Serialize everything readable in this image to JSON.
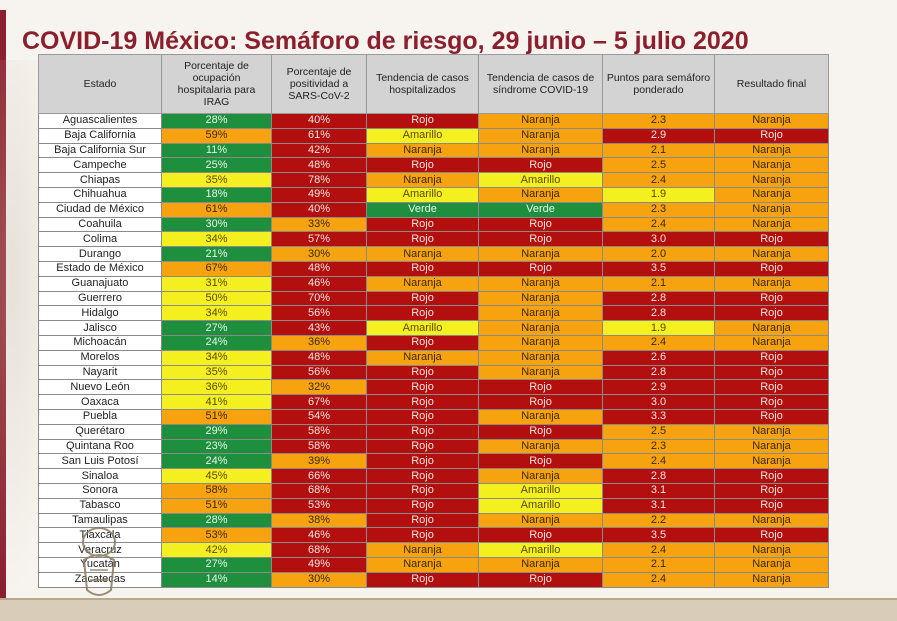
{
  "title": "COVID-19 México: Semáforo de riesgo, 29 junio – 5 julio 2020",
  "colors": {
    "Rojo": "#b30f0f",
    "Naranja": "#f7a20f",
    "Amarillo": "#f4ef1e",
    "Verde": "#1e8f3c",
    "title": "#8c1f2e"
  },
  "table": {
    "headers": [
      "Estado",
      "Porcentaje de ocupación hospitalaria para IRAG",
      "Porcentaje de positividad a SARS-CoV-2",
      "Tendencia de casos hospitalizados",
      "Tendencia de casos de síndrome COVID-19",
      "Puntos para semáforo ponderado",
      "Resultado final"
    ],
    "rows": [
      {
        "estado": "Aguascalientes",
        "ocupacion": "28%",
        "ocupacion_color": "Verde",
        "positividad": "40%",
        "positividad_color": "Rojo",
        "hosp": "Rojo",
        "sindrome": "Naranja",
        "puntos": "2.3",
        "puntos_color": "Naranja",
        "resultado": "Naranja"
      },
      {
        "estado": "Baja California",
        "ocupacion": "59%",
        "ocupacion_color": "Naranja",
        "positividad": "61%",
        "positividad_color": "Rojo",
        "hosp": "Amarillo",
        "sindrome": "Naranja",
        "puntos": "2.9",
        "puntos_color": "Rojo",
        "resultado": "Rojo"
      },
      {
        "estado": "Baja California Sur",
        "ocupacion": "11%",
        "ocupacion_color": "Verde",
        "positividad": "42%",
        "positividad_color": "Rojo",
        "hosp": "Naranja",
        "sindrome": "Naranja",
        "puntos": "2.1",
        "puntos_color": "Naranja",
        "resultado": "Naranja"
      },
      {
        "estado": "Campeche",
        "ocupacion": "25%",
        "ocupacion_color": "Verde",
        "positividad": "48%",
        "positividad_color": "Rojo",
        "hosp": "Rojo",
        "sindrome": "Rojo",
        "puntos": "2.5",
        "puntos_color": "Naranja",
        "resultado": "Naranja"
      },
      {
        "estado": "Chiapas",
        "ocupacion": "35%",
        "ocupacion_color": "Amarillo",
        "positividad": "78%",
        "positividad_color": "Rojo",
        "hosp": "Naranja",
        "sindrome": "Amarillo",
        "puntos": "2.4",
        "puntos_color": "Naranja",
        "resultado": "Naranja"
      },
      {
        "estado": "Chihuahua",
        "ocupacion": "18%",
        "ocupacion_color": "Verde",
        "positividad": "49%",
        "positividad_color": "Rojo",
        "hosp": "Amarillo",
        "sindrome": "Naranja",
        "puntos": "1.9",
        "puntos_color": "Amarillo",
        "resultado": "Naranja"
      },
      {
        "estado": "Ciudad de México",
        "ocupacion": "61%",
        "ocupacion_color": "Naranja",
        "positividad": "40%",
        "positividad_color": "Rojo",
        "hosp": "Verde",
        "sindrome": "Verde",
        "puntos": "2.3",
        "puntos_color": "Naranja",
        "resultado": "Naranja"
      },
      {
        "estado": "Coahuila",
        "ocupacion": "30%",
        "ocupacion_color": "Verde",
        "positividad": "33%",
        "positividad_color": "Naranja",
        "hosp": "Rojo",
        "sindrome": "Rojo",
        "puntos": "2.4",
        "puntos_color": "Naranja",
        "resultado": "Naranja"
      },
      {
        "estado": "Colima",
        "ocupacion": "34%",
        "ocupacion_color": "Amarillo",
        "positividad": "57%",
        "positividad_color": "Rojo",
        "hosp": "Rojo",
        "sindrome": "Rojo",
        "puntos": "3.0",
        "puntos_color": "Rojo",
        "resultado": "Rojo"
      },
      {
        "estado": "Durango",
        "ocupacion": "21%",
        "ocupacion_color": "Verde",
        "positividad": "30%",
        "positividad_color": "Naranja",
        "hosp": "Naranja",
        "sindrome": "Naranja",
        "puntos": "2.0",
        "puntos_color": "Naranja",
        "resultado": "Naranja"
      },
      {
        "estado": "Estado de México",
        "ocupacion": "67%",
        "ocupacion_color": "Naranja",
        "positividad": "48%",
        "positividad_color": "Rojo",
        "hosp": "Rojo",
        "sindrome": "Rojo",
        "puntos": "3.5",
        "puntos_color": "Rojo",
        "resultado": "Rojo"
      },
      {
        "estado": "Guanajuato",
        "ocupacion": "31%",
        "ocupacion_color": "Amarillo",
        "positividad": "46%",
        "positividad_color": "Rojo",
        "hosp": "Naranja",
        "sindrome": "Naranja",
        "puntos": "2.1",
        "puntos_color": "Naranja",
        "resultado": "Naranja"
      },
      {
        "estado": "Guerrero",
        "ocupacion": "50%",
        "ocupacion_color": "Amarillo",
        "positividad": "70%",
        "positividad_color": "Rojo",
        "hosp": "Rojo",
        "sindrome": "Naranja",
        "puntos": "2.8",
        "puntos_color": "Rojo",
        "resultado": "Rojo"
      },
      {
        "estado": "Hidalgo",
        "ocupacion": "34%",
        "ocupacion_color": "Amarillo",
        "positividad": "56%",
        "positividad_color": "Rojo",
        "hosp": "Rojo",
        "sindrome": "Naranja",
        "puntos": "2.8",
        "puntos_color": "Rojo",
        "resultado": "Rojo"
      },
      {
        "estado": "Jalisco",
        "ocupacion": "27%",
        "ocupacion_color": "Verde",
        "positividad": "43%",
        "positividad_color": "Rojo",
        "hosp": "Amarillo",
        "sindrome": "Naranja",
        "puntos": "1.9",
        "puntos_color": "Amarillo",
        "resultado": "Naranja"
      },
      {
        "estado": "Michoacán",
        "ocupacion": "24%",
        "ocupacion_color": "Verde",
        "positividad": "36%",
        "positividad_color": "Naranja",
        "hosp": "Rojo",
        "sindrome": "Naranja",
        "puntos": "2.4",
        "puntos_color": "Naranja",
        "resultado": "Naranja"
      },
      {
        "estado": "Morelos",
        "ocupacion": "34%",
        "ocupacion_color": "Amarillo",
        "positividad": "48%",
        "positividad_color": "Rojo",
        "hosp": "Naranja",
        "sindrome": "Naranja",
        "puntos": "2.6",
        "puntos_color": "Rojo",
        "resultado": "Rojo"
      },
      {
        "estado": "Nayarit",
        "ocupacion": "35%",
        "ocupacion_color": "Amarillo",
        "positividad": "56%",
        "positividad_color": "Rojo",
        "hosp": "Rojo",
        "sindrome": "Naranja",
        "puntos": "2.8",
        "puntos_color": "Rojo",
        "resultado": "Rojo"
      },
      {
        "estado": "Nuevo León",
        "ocupacion": "36%",
        "ocupacion_color": "Amarillo",
        "positividad": "32%",
        "positividad_color": "Naranja",
        "hosp": "Rojo",
        "sindrome": "Rojo",
        "puntos": "2.9",
        "puntos_color": "Rojo",
        "resultado": "Rojo"
      },
      {
        "estado": "Oaxaca",
        "ocupacion": "41%",
        "ocupacion_color": "Amarillo",
        "positividad": "67%",
        "positividad_color": "Rojo",
        "hosp": "Rojo",
        "sindrome": "Rojo",
        "puntos": "3.0",
        "puntos_color": "Rojo",
        "resultado": "Rojo"
      },
      {
        "estado": "Puebla",
        "ocupacion": "51%",
        "ocupacion_color": "Naranja",
        "positividad": "54%",
        "positividad_color": "Rojo",
        "hosp": "Rojo",
        "sindrome": "Naranja",
        "puntos": "3.3",
        "puntos_color": "Rojo",
        "resultado": "Rojo"
      },
      {
        "estado": "Querétaro",
        "ocupacion": "29%",
        "ocupacion_color": "Verde",
        "positividad": "58%",
        "positividad_color": "Rojo",
        "hosp": "Rojo",
        "sindrome": "Rojo",
        "puntos": "2.5",
        "puntos_color": "Naranja",
        "resultado": "Naranja"
      },
      {
        "estado": "Quintana Roo",
        "ocupacion": "23%",
        "ocupacion_color": "Verde",
        "positividad": "58%",
        "positividad_color": "Rojo",
        "hosp": "Rojo",
        "sindrome": "Naranja",
        "puntos": "2.3",
        "puntos_color": "Naranja",
        "resultado": "Naranja"
      },
      {
        "estado": "San Luis Potosí",
        "ocupacion": "24%",
        "ocupacion_color": "Verde",
        "positividad": "39%",
        "positividad_color": "Naranja",
        "hosp": "Rojo",
        "sindrome": "Rojo",
        "puntos": "2.4",
        "puntos_color": "Naranja",
        "resultado": "Naranja"
      },
      {
        "estado": "Sinaloa",
        "ocupacion": "45%",
        "ocupacion_color": "Amarillo",
        "positividad": "66%",
        "positividad_color": "Rojo",
        "hosp": "Rojo",
        "sindrome": "Naranja",
        "puntos": "2.8",
        "puntos_color": "Rojo",
        "resultado": "Rojo"
      },
      {
        "estado": "Sonora",
        "ocupacion": "58%",
        "ocupacion_color": "Naranja",
        "positividad": "68%",
        "positividad_color": "Rojo",
        "hosp": "Rojo",
        "sindrome": "Amarillo",
        "puntos": "3.1",
        "puntos_color": "Rojo",
        "resultado": "Rojo"
      },
      {
        "estado": "Tabasco",
        "ocupacion": "51%",
        "ocupacion_color": "Naranja",
        "positividad": "53%",
        "positividad_color": "Rojo",
        "hosp": "Rojo",
        "sindrome": "Amarillo",
        "puntos": "3.1",
        "puntos_color": "Rojo",
        "resultado": "Rojo"
      },
      {
        "estado": "Tamaulipas",
        "ocupacion": "28%",
        "ocupacion_color": "Verde",
        "positividad": "38%",
        "positividad_color": "Naranja",
        "hosp": "Rojo",
        "sindrome": "Naranja",
        "puntos": "2.2",
        "puntos_color": "Naranja",
        "resultado": "Naranja"
      },
      {
        "estado": "Tlaxcala",
        "ocupacion": "53%",
        "ocupacion_color": "Naranja",
        "positividad": "46%",
        "positividad_color": "Rojo",
        "hosp": "Rojo",
        "sindrome": "Rojo",
        "puntos": "3.5",
        "puntos_color": "Rojo",
        "resultado": "Rojo"
      },
      {
        "estado": "Veracruz",
        "ocupacion": "42%",
        "ocupacion_color": "Amarillo",
        "positividad": "68%",
        "positividad_color": "Rojo",
        "hosp": "Naranja",
        "sindrome": "Amarillo",
        "puntos": "2.4",
        "puntos_color": "Naranja",
        "resultado": "Naranja"
      },
      {
        "estado": "Yucatán",
        "ocupacion": "27%",
        "ocupacion_color": "Verde",
        "positividad": "49%",
        "positividad_color": "Rojo",
        "hosp": "Naranja",
        "sindrome": "Naranja",
        "puntos": "2.1",
        "puntos_color": "Naranja",
        "resultado": "Naranja"
      },
      {
        "estado": "Zacatecas",
        "ocupacion": "14%",
        "ocupacion_color": "Verde",
        "positividad": "30%",
        "positividad_color": "Naranja",
        "hosp": "Rojo",
        "sindrome": "Rojo",
        "puntos": "2.4",
        "puntos_color": "Naranja",
        "resultado": "Naranja"
      }
    ]
  }
}
